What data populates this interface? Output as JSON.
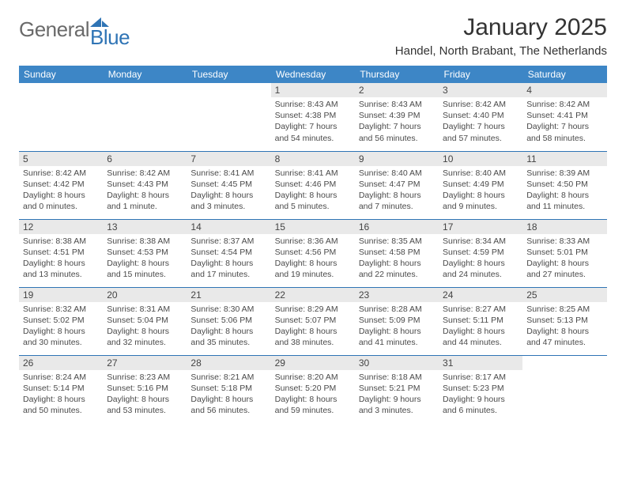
{
  "logo": {
    "gray_text": "General",
    "blue_text": "Blue",
    "gray_color": "#6a6a6a",
    "blue_color": "#2f74b5"
  },
  "title": "January 2025",
  "location": "Handel, North Brabant, The Netherlands",
  "header_bg": "#3d86c6",
  "header_text_color": "#ffffff",
  "daynum_bg": "#e9e9e9",
  "border_color": "#2f74b5",
  "body_text_color": "#4a4a4a",
  "day_headers": [
    "Sunday",
    "Monday",
    "Tuesday",
    "Wednesday",
    "Thursday",
    "Friday",
    "Saturday"
  ],
  "weeks": [
    [
      null,
      null,
      null,
      {
        "n": "1",
        "lines": [
          "Sunrise: 8:43 AM",
          "Sunset: 4:38 PM",
          "Daylight: 7 hours",
          "and 54 minutes."
        ]
      },
      {
        "n": "2",
        "lines": [
          "Sunrise: 8:43 AM",
          "Sunset: 4:39 PM",
          "Daylight: 7 hours",
          "and 56 minutes."
        ]
      },
      {
        "n": "3",
        "lines": [
          "Sunrise: 8:42 AM",
          "Sunset: 4:40 PM",
          "Daylight: 7 hours",
          "and 57 minutes."
        ]
      },
      {
        "n": "4",
        "lines": [
          "Sunrise: 8:42 AM",
          "Sunset: 4:41 PM",
          "Daylight: 7 hours",
          "and 58 minutes."
        ]
      }
    ],
    [
      {
        "n": "5",
        "lines": [
          "Sunrise: 8:42 AM",
          "Sunset: 4:42 PM",
          "Daylight: 8 hours",
          "and 0 minutes."
        ]
      },
      {
        "n": "6",
        "lines": [
          "Sunrise: 8:42 AM",
          "Sunset: 4:43 PM",
          "Daylight: 8 hours",
          "and 1 minute."
        ]
      },
      {
        "n": "7",
        "lines": [
          "Sunrise: 8:41 AM",
          "Sunset: 4:45 PM",
          "Daylight: 8 hours",
          "and 3 minutes."
        ]
      },
      {
        "n": "8",
        "lines": [
          "Sunrise: 8:41 AM",
          "Sunset: 4:46 PM",
          "Daylight: 8 hours",
          "and 5 minutes."
        ]
      },
      {
        "n": "9",
        "lines": [
          "Sunrise: 8:40 AM",
          "Sunset: 4:47 PM",
          "Daylight: 8 hours",
          "and 7 minutes."
        ]
      },
      {
        "n": "10",
        "lines": [
          "Sunrise: 8:40 AM",
          "Sunset: 4:49 PM",
          "Daylight: 8 hours",
          "and 9 minutes."
        ]
      },
      {
        "n": "11",
        "lines": [
          "Sunrise: 8:39 AM",
          "Sunset: 4:50 PM",
          "Daylight: 8 hours",
          "and 11 minutes."
        ]
      }
    ],
    [
      {
        "n": "12",
        "lines": [
          "Sunrise: 8:38 AM",
          "Sunset: 4:51 PM",
          "Daylight: 8 hours",
          "and 13 minutes."
        ]
      },
      {
        "n": "13",
        "lines": [
          "Sunrise: 8:38 AM",
          "Sunset: 4:53 PM",
          "Daylight: 8 hours",
          "and 15 minutes."
        ]
      },
      {
        "n": "14",
        "lines": [
          "Sunrise: 8:37 AM",
          "Sunset: 4:54 PM",
          "Daylight: 8 hours",
          "and 17 minutes."
        ]
      },
      {
        "n": "15",
        "lines": [
          "Sunrise: 8:36 AM",
          "Sunset: 4:56 PM",
          "Daylight: 8 hours",
          "and 19 minutes."
        ]
      },
      {
        "n": "16",
        "lines": [
          "Sunrise: 8:35 AM",
          "Sunset: 4:58 PM",
          "Daylight: 8 hours",
          "and 22 minutes."
        ]
      },
      {
        "n": "17",
        "lines": [
          "Sunrise: 8:34 AM",
          "Sunset: 4:59 PM",
          "Daylight: 8 hours",
          "and 24 minutes."
        ]
      },
      {
        "n": "18",
        "lines": [
          "Sunrise: 8:33 AM",
          "Sunset: 5:01 PM",
          "Daylight: 8 hours",
          "and 27 minutes."
        ]
      }
    ],
    [
      {
        "n": "19",
        "lines": [
          "Sunrise: 8:32 AM",
          "Sunset: 5:02 PM",
          "Daylight: 8 hours",
          "and 30 minutes."
        ]
      },
      {
        "n": "20",
        "lines": [
          "Sunrise: 8:31 AM",
          "Sunset: 5:04 PM",
          "Daylight: 8 hours",
          "and 32 minutes."
        ]
      },
      {
        "n": "21",
        "lines": [
          "Sunrise: 8:30 AM",
          "Sunset: 5:06 PM",
          "Daylight: 8 hours",
          "and 35 minutes."
        ]
      },
      {
        "n": "22",
        "lines": [
          "Sunrise: 8:29 AM",
          "Sunset: 5:07 PM",
          "Daylight: 8 hours",
          "and 38 minutes."
        ]
      },
      {
        "n": "23",
        "lines": [
          "Sunrise: 8:28 AM",
          "Sunset: 5:09 PM",
          "Daylight: 8 hours",
          "and 41 minutes."
        ]
      },
      {
        "n": "24",
        "lines": [
          "Sunrise: 8:27 AM",
          "Sunset: 5:11 PM",
          "Daylight: 8 hours",
          "and 44 minutes."
        ]
      },
      {
        "n": "25",
        "lines": [
          "Sunrise: 8:25 AM",
          "Sunset: 5:13 PM",
          "Daylight: 8 hours",
          "and 47 minutes."
        ]
      }
    ],
    [
      {
        "n": "26",
        "lines": [
          "Sunrise: 8:24 AM",
          "Sunset: 5:14 PM",
          "Daylight: 8 hours",
          "and 50 minutes."
        ]
      },
      {
        "n": "27",
        "lines": [
          "Sunrise: 8:23 AM",
          "Sunset: 5:16 PM",
          "Daylight: 8 hours",
          "and 53 minutes."
        ]
      },
      {
        "n": "28",
        "lines": [
          "Sunrise: 8:21 AM",
          "Sunset: 5:18 PM",
          "Daylight: 8 hours",
          "and 56 minutes."
        ]
      },
      {
        "n": "29",
        "lines": [
          "Sunrise: 8:20 AM",
          "Sunset: 5:20 PM",
          "Daylight: 8 hours",
          "and 59 minutes."
        ]
      },
      {
        "n": "30",
        "lines": [
          "Sunrise: 8:18 AM",
          "Sunset: 5:21 PM",
          "Daylight: 9 hours",
          "and 3 minutes."
        ]
      },
      {
        "n": "31",
        "lines": [
          "Sunrise: 8:17 AM",
          "Sunset: 5:23 PM",
          "Daylight: 9 hours",
          "and 6 minutes."
        ]
      },
      null
    ]
  ]
}
